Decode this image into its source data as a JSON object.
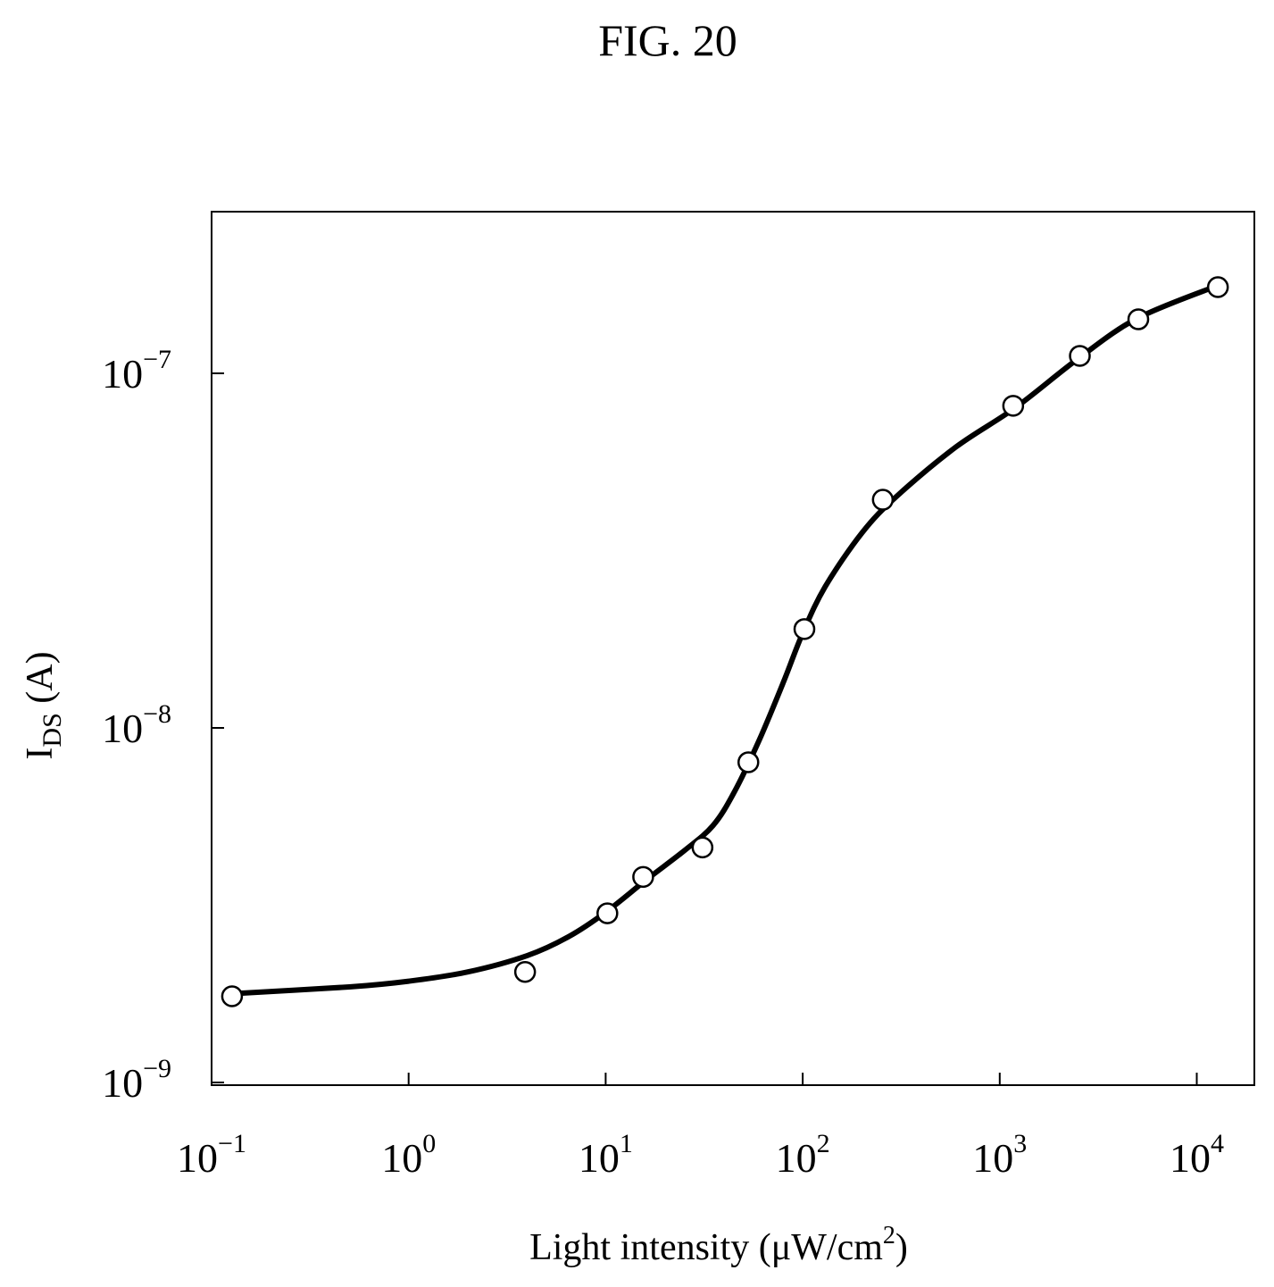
{
  "figure_label": "FIG. 20",
  "chart_data": {
    "type": "line",
    "title": "",
    "xlabel": "Light intensity (μW/cm²)",
    "xlabel_main": "Light intensity (μW/cm",
    "xlabel_sup": "2",
    "xlabel_close": ")",
    "ylabel": "I_DS (A)",
    "ylabel_main": "I",
    "ylabel_sub": "DS",
    "ylabel_unit": " (A)",
    "xscale": "log",
    "yscale": "log",
    "xlim": [
      0.1,
      30000
    ],
    "ylim": [
      1e-09,
      3e-07
    ],
    "grid": false,
    "x_ticks": [
      {
        "value": 0.1,
        "base": "10",
        "exp": "−1"
      },
      {
        "value": 1,
        "base": "10",
        "exp": "0"
      },
      {
        "value": 10,
        "base": "10",
        "exp": "1"
      },
      {
        "value": 100,
        "base": "10",
        "exp": "2"
      },
      {
        "value": 1000,
        "base": "10",
        "exp": "3"
      },
      {
        "value": 10000,
        "base": "10",
        "exp": "4"
      }
    ],
    "y_ticks": [
      {
        "value": 1e-09,
        "base": "10",
        "exp": "−9"
      },
      {
        "value": 1e-08,
        "base": "10",
        "exp": "−8"
      },
      {
        "value": 1e-07,
        "base": "10",
        "exp": "−7"
      }
    ],
    "series": [
      {
        "kind": "measured",
        "marker": "open-circle",
        "points": [
          {
            "x": 0.127,
            "y": 1.75e-09
          },
          {
            "x": 3.9,
            "y": 2.05e-09
          },
          {
            "x": 10.2,
            "y": 3e-09
          },
          {
            "x": 15.5,
            "y": 3.8e-09
          },
          {
            "x": 31.0,
            "y": 4.6e-09
          },
          {
            "x": 53.0,
            "y": 8e-09
          },
          {
            "x": 102.0,
            "y": 1.9e-08
          },
          {
            "x": 255.0,
            "y": 4.4e-08
          },
          {
            "x": 1170.0,
            "y": 8.1e-08
          },
          {
            "x": 2550.0,
            "y": 1.12e-07
          },
          {
            "x": 5050.0,
            "y": 1.42e-07
          },
          {
            "x": 12800.0,
            "y": 1.75e-07
          }
        ]
      },
      {
        "kind": "fit",
        "marker": "none",
        "points": [
          {
            "x": 0.127,
            "y": 1.78e-09
          },
          {
            "x": 0.5,
            "y": 1.86e-09
          },
          {
            "x": 1.0,
            "y": 1.93e-09
          },
          {
            "x": 2.0,
            "y": 2.05e-09
          },
          {
            "x": 4.0,
            "y": 2.28e-09
          },
          {
            "x": 6.5,
            "y": 2.58e-09
          },
          {
            "x": 10.0,
            "y": 3.02e-09
          },
          {
            "x": 16.0,
            "y": 3.72e-09
          },
          {
            "x": 25.0,
            "y": 4.5e-09
          },
          {
            "x": 35.0,
            "y": 5.3e-09
          },
          {
            "x": 45.0,
            "y": 6.6e-09
          },
          {
            "x": 60.0,
            "y": 9.2e-09
          },
          {
            "x": 80.0,
            "y": 1.35e-08
          },
          {
            "x": 100.0,
            "y": 1.85e-08
          },
          {
            "x": 130.0,
            "y": 2.5e-08
          },
          {
            "x": 200.0,
            "y": 3.55e-08
          },
          {
            "x": 300.0,
            "y": 4.5e-08
          },
          {
            "x": 600.0,
            "y": 6.2e-08
          },
          {
            "x": 1200.0,
            "y": 8e-08
          },
          {
            "x": 2500.0,
            "y": 1.1e-07
          },
          {
            "x": 5000.0,
            "y": 1.43e-07
          },
          {
            "x": 12800.0,
            "y": 1.77e-07
          }
        ]
      }
    ]
  }
}
